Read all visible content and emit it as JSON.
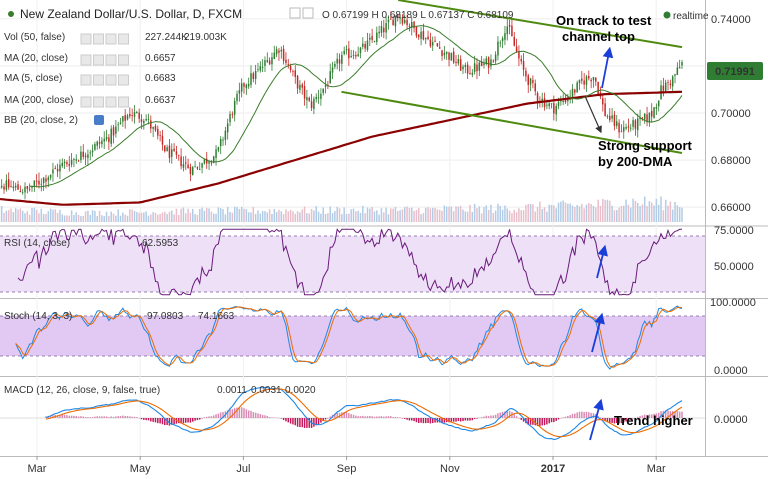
{
  "header": {
    "title": "New Zealand Dollar/U.S. Dollar, D, FXCM",
    "ohlc_text": "O 0.67199 H 0.68189 L 0.67137 C 0.68109",
    "realtime_label": "realtime"
  },
  "indicators": {
    "vol": {
      "label": "Vol (50, false)",
      "v1": "227.244K",
      "v2": "219.003K"
    },
    "ma20": {
      "label": "MA (20, close)",
      "value": "0.6657"
    },
    "ma5": {
      "label": "MA (5, close)",
      "value": "0.6683"
    },
    "ma200": {
      "label": "MA (200, close)",
      "value": "0.6637"
    },
    "bb": {
      "label": "BB (20, close, 2)"
    },
    "rsi": {
      "label": "RSI (14, close)",
      "value": "62.5953"
    },
    "stoch": {
      "label": "Stoch (14, 3, 3)",
      "v1": "97.0803",
      "v2": "74.1663"
    },
    "macd": {
      "label": "MACD (12, 26, close, 9, false, true)",
      "v1": "0.0011",
      "v2": "0.0031",
      "v3": "0.0020"
    }
  },
  "annotations": {
    "channel_top": [
      "On track to test",
      "channel top"
    ],
    "support": [
      "Strong support",
      "by 200-DMA"
    ],
    "trend": "Trend higher"
  },
  "colors": {
    "up": "#2e7d32",
    "down": "#c62828",
    "ma200": "#8b0000",
    "ma20": "#3a7d2a",
    "channel": "#4f8a10",
    "rsi": "#6a1b7a",
    "band": "#e8d8f5",
    "stochK": "#1e88e5",
    "stochD": "#ef6c00",
    "macd": "#1e88e5",
    "signal": "#ef6c00",
    "arrow": "#1a3fd9",
    "last_price_bg": "#2e7d32"
  },
  "chart_data": [
    {
      "type": "candlestick",
      "title": "New Zealand Dollar/U.S. Dollar, D, FXCM",
      "x_ticks": [
        "Mar",
        "May",
        "Jul",
        "Sep",
        "Nov",
        "2017",
        "Mar"
      ],
      "price_ticks": [
        "0.74000",
        "0.72000",
        "0.70000",
        "0.68000",
        "0.66000"
      ],
      "ylim": [
        0.652,
        0.748
      ],
      "last_price": "0.71991",
      "close_path": [
        {
          "m": 0,
          "p": 0.671
        },
        {
          "m": 0.8,
          "p": 0.667
        },
        {
          "m": 1.5,
          "p": 0.678
        },
        {
          "m": 2.0,
          "p": 0.684
        },
        {
          "m": 2.4,
          "p": 0.69
        },
        {
          "m": 2.8,
          "p": 0.7
        },
        {
          "m": 3.1,
          "p": 0.698
        },
        {
          "m": 3.5,
          "p": 0.684
        },
        {
          "m": 4.0,
          "p": 0.676
        },
        {
          "m": 4.5,
          "p": 0.683
        },
        {
          "m": 4.8,
          "p": 0.702
        },
        {
          "m": 5.0,
          "p": 0.712
        },
        {
          "m": 5.3,
          "p": 0.718
        },
        {
          "m": 5.7,
          "p": 0.728
        },
        {
          "m": 6.0,
          "p": 0.714
        },
        {
          "m": 6.3,
          "p": 0.703
        },
        {
          "m": 6.6,
          "p": 0.712
        },
        {
          "m": 6.9,
          "p": 0.724
        },
        {
          "m": 7.3,
          "p": 0.727
        },
        {
          "m": 7.6,
          "p": 0.733
        },
        {
          "m": 8.0,
          "p": 0.742
        },
        {
          "m": 8.3,
          "p": 0.736
        },
        {
          "m": 8.6,
          "p": 0.731
        },
        {
          "m": 9.0,
          "p": 0.724
        },
        {
          "m": 9.3,
          "p": 0.718
        },
        {
          "m": 9.5,
          "p": 0.719
        },
        {
          "m": 9.8,
          "p": 0.722
        },
        {
          "m": 10.1,
          "p": 0.738
        },
        {
          "m": 10.4,
          "p": 0.719
        },
        {
          "m": 10.7,
          "p": 0.707
        },
        {
          "m": 11.0,
          "p": 0.702
        },
        {
          "m": 11.3,
          "p": 0.707
        },
        {
          "m": 11.6,
          "p": 0.714
        },
        {
          "m": 11.8,
          "p": 0.716
        },
        {
          "m": 12.0,
          "p": 0.7
        },
        {
          "m": 12.3,
          "p": 0.693
        },
        {
          "m": 12.6,
          "p": 0.695
        },
        {
          "m": 12.9,
          "p": 0.699
        },
        {
          "m": 13.1,
          "p": 0.71
        },
        {
          "m": 13.3,
          "p": 0.714
        },
        {
          "m": 13.5,
          "p": 0.721
        }
      ],
      "volume_profile": [
        {
          "m": 0,
          "v": 35
        },
        {
          "m": 2.0,
          "v": 25
        },
        {
          "m": 4.0,
          "v": 30
        },
        {
          "m": 6.0,
          "v": 32
        },
        {
          "m": 8.0,
          "v": 33
        },
        {
          "m": 10.0,
          "v": 38
        },
        {
          "m": 11.5,
          "v": 45
        },
        {
          "m": 12.5,
          "v": 55
        },
        {
          "m": 13.5,
          "v": 50
        }
      ],
      "ma200": [
        {
          "m": 0,
          "p": 0.664
        },
        {
          "m": 1.5,
          "p": 0.661
        },
        {
          "m": 3.0,
          "p": 0.662
        },
        {
          "m": 4.5,
          "p": 0.67
        },
        {
          "m": 6.0,
          "p": 0.68
        },
        {
          "m": 7.5,
          "p": 0.69
        },
        {
          "m": 9.0,
          "p": 0.697
        },
        {
          "m": 10.5,
          "p": 0.704
        },
        {
          "m": 12.0,
          "p": 0.708
        },
        {
          "m": 13.5,
          "p": 0.709
        }
      ],
      "channel_lines": [
        {
          "m1": 8.0,
          "p1": 0.748,
          "m2": 13.5,
          "p2": 0.728
        },
        {
          "m1": 6.9,
          "p1": 0.709,
          "m2": 13.5,
          "p2": 0.683
        }
      ]
    },
    {
      "type": "line",
      "title": "RSI (14, close)",
      "y_ticks": [
        "75.0000",
        "50.0000"
      ],
      "ylim": [
        20,
        80
      ],
      "band": [
        30,
        70
      ],
      "value": "62.5953"
    },
    {
      "type": "line",
      "title": "Stoch (14, 3, 3)",
      "y_ticks": [
        "100.0000",
        "0.0000"
      ],
      "ylim": [
        -5,
        105
      ],
      "band": [
        20,
        80
      ],
      "values": [
        "97.0803",
        "74.1663"
      ]
    },
    {
      "type": "line",
      "title": "MACD (12, 26, close, 9, false, true)",
      "y_ticks": [
        "0.0000"
      ],
      "values": [
        "0.0011",
        "0.0031",
        "0.0020"
      ]
    }
  ]
}
